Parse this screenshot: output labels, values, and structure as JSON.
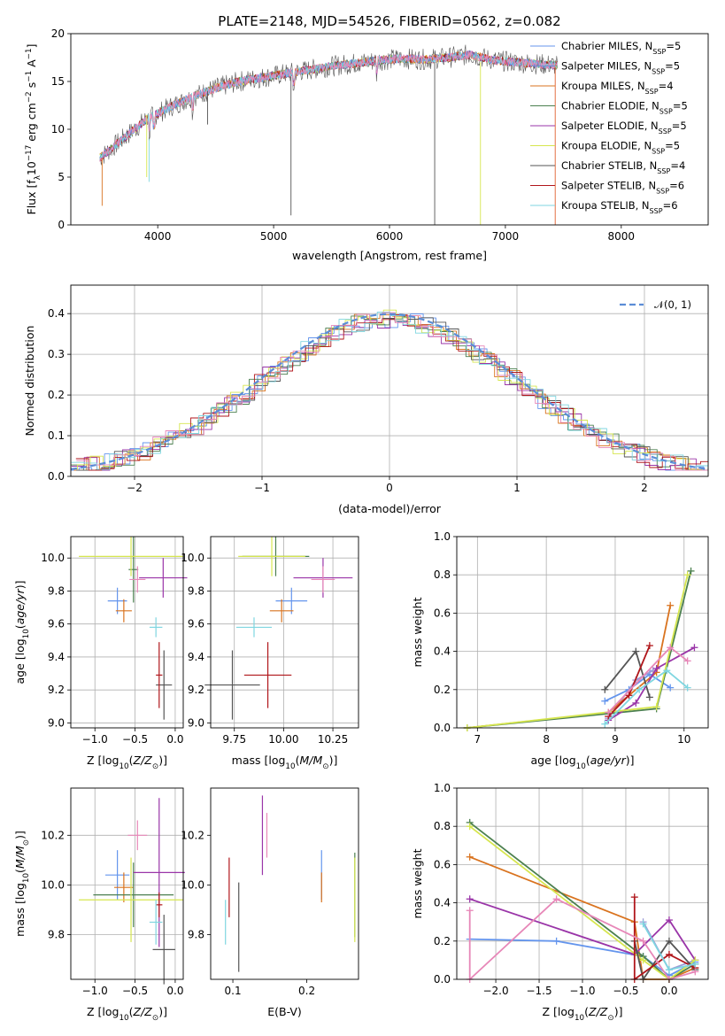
{
  "colors": [
    "#6495ed",
    "#9b9bd6",
    "#d9731f",
    "#4c8050",
    "#9a35a8",
    "#d6e64f",
    "#555555",
    "#b0161b",
    "#7fd6e0",
    "#e787b8"
  ],
  "chart_data": [
    {
      "id": "spectrum",
      "type": "line",
      "title": "PLATE=2148, MJD=54526, FIBERID=0562, z=0.082",
      "xlabel": "wavelength [Angstrom, rest frame]",
      "ylabel": "Flux [f_λ10⁻¹⁷ erg cm⁻² s⁻¹ A⁻¹]",
      "xlim": [
        3250,
        8750
      ],
      "ylim": [
        0,
        20
      ],
      "xticks": [
        4000,
        5000,
        6000,
        7000,
        8000
      ],
      "yticks": [
        0,
        5,
        10,
        15,
        20
      ],
      "x": [
        3500,
        3700,
        3900,
        4100,
        4300,
        4500,
        4700,
        4900,
        5100,
        5300,
        5500,
        5700,
        5900,
        6100,
        6300,
        6500,
        6700,
        6900,
        7100,
        7300,
        7450
      ],
      "y": [
        7.0,
        9.0,
        11.0,
        12.3,
        13.4,
        14.3,
        15.0,
        15.4,
        15.8,
        16.2,
        16.6,
        16.9,
        17.2,
        17.4,
        17.3,
        17.5,
        17.8,
        17.2,
        17.0,
        16.8,
        16.7
      ],
      "legend": [
        "Chabrier MILES, N_SSP=5",
        "Salpeter MILES, N_SSP=5",
        "Kroupa MILES, N_SSP=4",
        "Chabrier ELODIE, N_SSP=5",
        "Salpeter ELODIE, N_SSP=5",
        "Kroupa ELODIE, N_SSP=5",
        "Chabrier STELIB, N_SSP=4",
        "Salpeter STELIB, N_SSP=6",
        "Kroupa STELIB, N_SSP=6"
      ],
      "legend_position": "right"
    },
    {
      "id": "residuals",
      "type": "histogram",
      "xlabel": "(data-model)/error",
      "ylabel": "Normed distribution",
      "xlim": [
        -2.5,
        2.5
      ],
      "ylim": [
        0,
        0.47
      ],
      "xticks": [
        -2,
        -1,
        0,
        1,
        2
      ],
      "yticks": [
        0.0,
        0.1,
        0.2,
        0.3,
        0.4
      ],
      "grid": true,
      "bin_width": 0.1,
      "reference_curve": "𝒩(0, 1)",
      "legend_position": "top-right"
    },
    {
      "id": "age-vs-Z",
      "type": "scatter",
      "xlabel": "Z [log10(Z/Z⊙)]",
      "ylabel": "age [log10(age/yr)]",
      "xlim": [
        -1.3,
        0.1
      ],
      "ylim": [
        8.97,
        10.13
      ],
      "xticks": [
        -1.0,
        -0.5,
        0.0
      ],
      "yticks": [
        9.0,
        9.2,
        9.4,
        9.6,
        9.8,
        10.0
      ],
      "grid": true,
      "points": [
        {
          "x": -0.72,
          "y": 9.74,
          "xerr": 0.12,
          "yerr": 0.08
        },
        {
          "x": -0.64,
          "y": 9.68,
          "xerr": 0.1,
          "yerr": 0.07
        },
        {
          "x": -0.52,
          "y": 9.93,
          "xerr": 0.06,
          "yerr": 0.2
        },
        {
          "x": -0.15,
          "y": 9.88,
          "xerr": 0.3,
          "yerr": 0.12
        },
        {
          "x": -0.55,
          "y": 10.01,
          "xerr": 0.65,
          "yerr": 0.12
        },
        {
          "x": -0.14,
          "y": 9.23,
          "xerr": 0.1,
          "yerr": 0.21
        },
        {
          "x": -0.2,
          "y": 9.29,
          "xerr": 0.04,
          "yerr": 0.2
        },
        {
          "x": -0.24,
          "y": 9.58,
          "xerr": 0.08,
          "yerr": 0.06
        },
        {
          "x": -0.47,
          "y": 9.87,
          "xerr": 0.1,
          "yerr": 0.08
        }
      ]
    },
    {
      "id": "age-vs-mass",
      "type": "scatter",
      "xlabel": "mass [log10(M/M⊙)]",
      "ylabel": "",
      "xlim": [
        9.63,
        10.38
      ],
      "ylim": [
        8.97,
        10.13
      ],
      "xticks": [
        9.75,
        10.0,
        10.25
      ],
      "yticks": [
        9.0,
        9.2,
        9.4,
        9.6,
        9.8,
        10.0
      ],
      "grid": true,
      "points": [
        {
          "x": 10.04,
          "y": 9.74,
          "xerr": 0.08,
          "yerr": 0.08
        },
        {
          "x": 9.99,
          "y": 9.68,
          "xerr": 0.06,
          "yerr": 0.07
        },
        {
          "x": 9.96,
          "y": 10.01,
          "xerr": 0.17,
          "yerr": 0.12
        },
        {
          "x": 10.2,
          "y": 9.88,
          "xerr": 0.15,
          "yerr": 0.12
        },
        {
          "x": 9.94,
          "y": 10.01,
          "xerr": 0.17,
          "yerr": 0.12
        },
        {
          "x": 9.74,
          "y": 9.23,
          "xerr": 0.14,
          "yerr": 0.21
        },
        {
          "x": 9.92,
          "y": 9.29,
          "xerr": 0.12,
          "yerr": 0.2
        },
        {
          "x": 9.85,
          "y": 9.58,
          "xerr": 0.09,
          "yerr": 0.06
        },
        {
          "x": 10.2,
          "y": 9.87,
          "xerr": 0.06,
          "yerr": 0.08
        }
      ]
    },
    {
      "id": "weight-vs-age",
      "type": "line",
      "xlabel": "age [log10(age/yr)]",
      "ylabel": "mass weight",
      "xlim": [
        6.7,
        10.35
      ],
      "ylim": [
        0,
        1.0
      ],
      "xticks": [
        7,
        8,
        9,
        10
      ],
      "yticks": [
        0.0,
        0.2,
        0.4,
        0.6,
        0.8,
        1.0
      ],
      "grid": true,
      "series": [
        {
          "x": [
            8.85,
            9.2,
            9.5,
            9.8
          ],
          "y": [
            0.14,
            0.2,
            0.28,
            0.21
          ]
        },
        {
          "x": [
            8.9,
            9.3,
            9.55
          ],
          "y": [
            0.05,
            0.25,
            0.3
          ]
        },
        {
          "x": [
            6.85,
            8.9,
            9.6,
            9.8
          ],
          "y": [
            0.0,
            0.08,
            0.29,
            0.64
          ]
        },
        {
          "x": [
            6.85,
            9.6,
            10.1
          ],
          "y": [
            0.0,
            0.1,
            0.82
          ]
        },
        {
          "x": [
            8.9,
            9.3,
            9.6,
            10.15
          ],
          "y": [
            0.04,
            0.13,
            0.31,
            0.42
          ]
        },
        {
          "x": [
            6.85,
            9.6,
            10.05
          ],
          "y": [
            0.0,
            0.11,
            0.8
          ]
        },
        {
          "x": [
            8.85,
            9.3,
            9.5
          ],
          "y": [
            0.2,
            0.4,
            0.16
          ]
        },
        {
          "x": [
            8.9,
            9.2,
            9.5
          ],
          "y": [
            0.06,
            0.17,
            0.43
          ]
        },
        {
          "x": [
            8.85,
            9.35,
            9.75,
            10.05
          ],
          "y": [
            0.02,
            0.2,
            0.3,
            0.21
          ]
        },
        {
          "x": [
            8.9,
            9.8,
            10.05
          ],
          "y": [
            0.08,
            0.42,
            0.35
          ]
        }
      ]
    },
    {
      "id": "mass-vs-Z",
      "type": "scatter",
      "xlabel": "Z [log10(Z/Z⊙)]",
      "ylabel": "mass [log10(M/M⊙)]",
      "xlim": [
        -1.3,
        0.1
      ],
      "ylim": [
        9.62,
        10.39
      ],
      "xticks": [
        -1.0,
        -0.5,
        0.0
      ],
      "yticks": [
        9.8,
        10.0,
        10.2
      ],
      "grid": true,
      "points": [
        {
          "x": -0.72,
          "y": 10.04,
          "xerr": 0.15,
          "yerr": 0.1
        },
        {
          "x": -0.64,
          "y": 9.99,
          "xerr": 0.12,
          "yerr": 0.06
        },
        {
          "x": -0.52,
          "y": 9.96,
          "xerr": 0.5,
          "yerr": 0.13
        },
        {
          "x": -0.2,
          "y": 10.05,
          "xerr": 0.32,
          "yerr": 0.3
        },
        {
          "x": -0.55,
          "y": 9.94,
          "xerr": 0.65,
          "yerr": 0.17
        },
        {
          "x": -0.14,
          "y": 9.74,
          "xerr": 0.14,
          "yerr": 0.14
        },
        {
          "x": -0.2,
          "y": 9.92,
          "xerr": 0.04,
          "yerr": 0.05
        },
        {
          "x": -0.24,
          "y": 9.85,
          "xerr": 0.08,
          "yerr": 0.09
        },
        {
          "x": -0.47,
          "y": 10.2,
          "xerr": 0.12,
          "yerr": 0.06
        }
      ]
    },
    {
      "id": "mass-vs-EBV",
      "type": "scatter",
      "xlabel": "E(B-V)",
      "ylabel": "",
      "xlim": [
        0.07,
        0.27
      ],
      "ylim": [
        9.62,
        10.39
      ],
      "xticks": [
        0.1,
        0.2
      ],
      "yticks": [
        9.8,
        10.0,
        10.2
      ],
      "grid": false,
      "points": [
        {
          "x": 0.22,
          "y": 10.04,
          "xerr": 0,
          "yerr": 0.1
        },
        {
          "x": 0.22,
          "y": 9.99,
          "xerr": 0,
          "yerr": 0.06
        },
        {
          "x": 0.265,
          "y": 9.96,
          "xerr": 0,
          "yerr": 0.17
        },
        {
          "x": 0.14,
          "y": 10.2,
          "xerr": 0,
          "yerr": 0.16
        },
        {
          "x": 0.265,
          "y": 9.94,
          "xerr": 0,
          "yerr": 0.17
        },
        {
          "x": 0.108,
          "y": 9.83,
          "xerr": 0,
          "yerr": 0.18
        },
        {
          "x": 0.095,
          "y": 9.99,
          "xerr": 0,
          "yerr": 0.12
        },
        {
          "x": 0.09,
          "y": 9.85,
          "xerr": 0,
          "yerr": 0.09
        },
        {
          "x": 0.146,
          "y": 10.2,
          "xerr": 0,
          "yerr": 0.09
        }
      ]
    },
    {
      "id": "weight-vs-Z",
      "type": "line",
      "xlabel": "Z [log10(Z/Z⊙)]",
      "ylabel": "mass weight",
      "xlim": [
        -2.45,
        0.45
      ],
      "ylim": [
        0,
        1.0
      ],
      "xticks": [
        -2.0,
        -1.5,
        -1.0,
        -0.5,
        0.0
      ],
      "yticks": [
        0.0,
        0.2,
        0.4,
        0.6,
        0.8,
        1.0
      ],
      "grid": true,
      "series": [
        {
          "x": [
            -2.3,
            -1.3,
            -0.3,
            0.0,
            0.3
          ],
          "y": [
            0.21,
            0.2,
            0.12,
            0.02,
            0.09
          ]
        },
        {
          "x": [
            -0.3,
            0.0,
            0.3
          ],
          "y": [
            0.3,
            0.05,
            0.1
          ]
        },
        {
          "x": [
            -2.3,
            -0.4,
            -0.3,
            0.0,
            0.3
          ],
          "y": [
            0.64,
            0.3,
            0.0,
            0.0,
            0.06
          ]
        },
        {
          "x": [
            -2.3,
            -0.3,
            0.0,
            0.3
          ],
          "y": [
            0.82,
            0.12,
            0.0,
            0.08
          ]
        },
        {
          "x": [
            -2.3,
            -0.4,
            0.0,
            0.3
          ],
          "y": [
            0.42,
            0.13,
            0.31,
            0.1
          ]
        },
        {
          "x": [
            -2.3,
            -0.3,
            0.0,
            0.3
          ],
          "y": [
            0.8,
            0.1,
            0.0,
            0.1
          ]
        },
        {
          "x": [
            -0.4,
            -0.3,
            0.0,
            0.3
          ],
          "y": [
            0.2,
            0.0,
            0.2,
            0.05
          ]
        },
        {
          "x": [
            -0.4,
            -0.4,
            0.0,
            0.3
          ],
          "y": [
            0.43,
            0.0,
            0.13,
            0.06
          ]
        },
        {
          "x": [
            -0.3,
            0.0,
            0.3
          ],
          "y": [
            0.29,
            0.05,
            0.08
          ]
        },
        {
          "x": [
            -2.3,
            -2.3,
            -1.3,
            -0.3,
            0.0,
            0.3
          ],
          "y": [
            0.36,
            0.0,
            0.42,
            0.2,
            0.0,
            0.04
          ]
        }
      ]
    }
  ]
}
